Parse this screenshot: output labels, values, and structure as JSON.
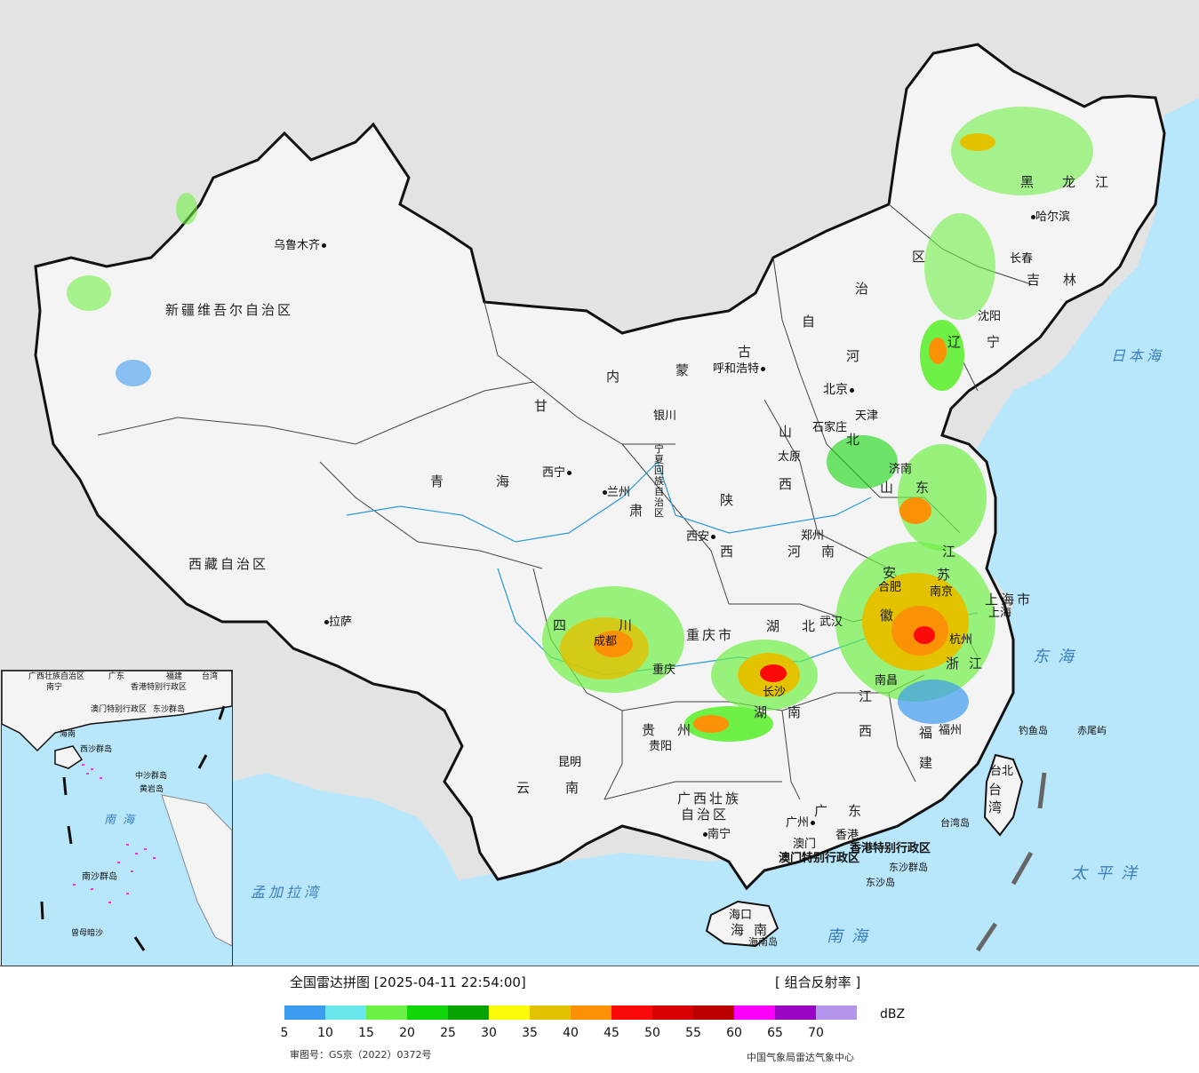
{
  "map": {
    "provinces": [
      {
        "name": "新疆维吾尔自治区"
      },
      {
        "name": "西藏自治区"
      },
      {
        "name": "青"
      },
      {
        "name": "海"
      },
      {
        "name": "甘"
      },
      {
        "name": "肃"
      },
      {
        "name": "内"
      },
      {
        "name": "蒙"
      },
      {
        "name": "古"
      },
      {
        "name": "自"
      },
      {
        "name": "治"
      },
      {
        "name": "区"
      },
      {
        "name": "黑"
      },
      {
        "name": "龙"
      },
      {
        "name": "江"
      },
      {
        "name": "吉"
      },
      {
        "name": "林"
      },
      {
        "name": "辽"
      },
      {
        "name": "宁"
      },
      {
        "name": "河"
      },
      {
        "name": "北"
      },
      {
        "name": "山"
      },
      {
        "name": "西"
      },
      {
        "name": "陕"
      },
      {
        "name": "西"
      },
      {
        "name": "河"
      },
      {
        "name": "南"
      },
      {
        "name": "山"
      },
      {
        "name": "东"
      },
      {
        "name": "江"
      },
      {
        "name": "苏"
      },
      {
        "name": "安"
      },
      {
        "name": "徽"
      },
      {
        "name": "湖"
      },
      {
        "name": "北"
      },
      {
        "name": "湖"
      },
      {
        "name": "南"
      },
      {
        "name": "浙"
      },
      {
        "name": "江"
      },
      {
        "name": "江"
      },
      {
        "name": "西"
      },
      {
        "name": "福"
      },
      {
        "name": "建"
      },
      {
        "name": "四"
      },
      {
        "name": "川"
      },
      {
        "name": "重庆市"
      },
      {
        "name": "贵"
      },
      {
        "name": "州"
      },
      {
        "name": "云"
      },
      {
        "name": "南"
      },
      {
        "name": "广西壮族"
      },
      {
        "name": "自治区"
      },
      {
        "name": "广"
      },
      {
        "name": "东"
      },
      {
        "name": "海"
      },
      {
        "name": "南"
      },
      {
        "name": "上海市"
      },
      {
        "name": "台"
      },
      {
        "name": "湾"
      },
      {
        "name": "宁夏回族自治区"
      },
      {
        "name": "香港特别行政区"
      },
      {
        "name": "澳门特别行政区"
      }
    ],
    "cities": [
      {
        "name": "乌鲁木齐"
      },
      {
        "name": "拉萨"
      },
      {
        "name": "西宁"
      },
      {
        "name": "兰州"
      },
      {
        "name": "银川"
      },
      {
        "name": "呼和浩特"
      },
      {
        "name": "北京"
      },
      {
        "name": "天津"
      },
      {
        "name": "石家庄"
      },
      {
        "name": "太原"
      },
      {
        "name": "哈尔滨"
      },
      {
        "name": "长春"
      },
      {
        "name": "沈阳"
      },
      {
        "name": "济南"
      },
      {
        "name": "郑州"
      },
      {
        "name": "西安"
      },
      {
        "name": "合肥"
      },
      {
        "name": "南京"
      },
      {
        "name": "上海"
      },
      {
        "name": "杭州"
      },
      {
        "name": "武汉"
      },
      {
        "name": "南昌"
      },
      {
        "name": "长沙"
      },
      {
        "name": "福州"
      },
      {
        "name": "台北"
      },
      {
        "name": "成都"
      },
      {
        "name": "重庆"
      },
      {
        "name": "贵阳"
      },
      {
        "name": "昆明"
      },
      {
        "name": "南宁"
      },
      {
        "name": "广州"
      },
      {
        "name": "澳门"
      },
      {
        "name": "香港"
      },
      {
        "name": "海口"
      }
    ],
    "features": [
      {
        "name": "日本海"
      },
      {
        "name": "东海"
      },
      {
        "name": "太平洋"
      },
      {
        "name": "南海"
      },
      {
        "name": "孟加拉湾"
      },
      {
        "name": "钓鱼岛"
      },
      {
        "name": "赤尾屿"
      },
      {
        "name": "台湾岛"
      },
      {
        "name": "东沙群岛"
      },
      {
        "name": "东沙岛"
      },
      {
        "name": "海南岛"
      }
    ],
    "inset_labels": [
      {
        "name": "广西壮族自治区"
      },
      {
        "name": "广东"
      },
      {
        "name": "福建"
      },
      {
        "name": "台湾"
      },
      {
        "name": "南宁"
      },
      {
        "name": "香港特别行政区"
      },
      {
        "name": "澳门特别行政区"
      },
      {
        "name": "东沙群岛"
      },
      {
        "name": "海南"
      },
      {
        "name": "西沙群岛"
      },
      {
        "name": "中沙群岛"
      },
      {
        "name": "黄岩岛"
      },
      {
        "name": "南海"
      },
      {
        "name": "南沙群岛"
      },
      {
        "name": "曾母暗沙"
      }
    ]
  },
  "legend": {
    "title": "全国雷达拼图 [2025-04-11 22:54:00]",
    "product": "[ 组合反射率 ]",
    "unit": "dBZ",
    "colors": [
      "#3d9bf0",
      "#6be6ec",
      "#6ff046",
      "#10d60a",
      "#07a303",
      "#fbfb07",
      "#e3c200",
      "#fb9106",
      "#fb0a0a",
      "#d80202",
      "#bb0000",
      "#fb00f8",
      "#9a05c4",
      "#b495ee"
    ],
    "ticks": [
      "5",
      "10",
      "15",
      "20",
      "25",
      "30",
      "35",
      "40",
      "45",
      "50",
      "55",
      "60",
      "65",
      "70"
    ],
    "approval_no": "审图号：GS京（2022）0372号",
    "agency": "中国气象局雷达气象中心"
  }
}
